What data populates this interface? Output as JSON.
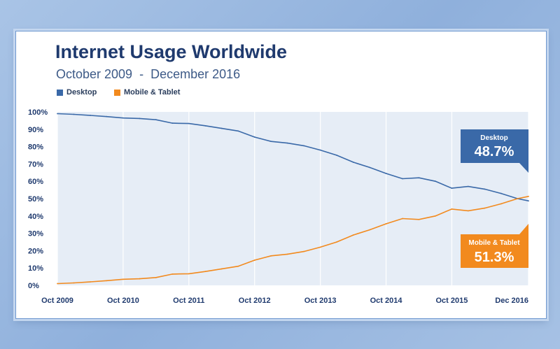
{
  "title": "Internet Usage Worldwide",
  "subtitle": "October 2009  -  December 2016",
  "colors": {
    "desktop": "#3a69a8",
    "mobile": "#f28a1e",
    "plot_bg": "#e6edf6",
    "text": "#1f3a6e"
  },
  "legend": [
    {
      "label": "Desktop",
      "color": "#3a69a8"
    },
    {
      "label": "Mobile & Tablet",
      "color": "#f28a1e"
    }
  ],
  "callouts": {
    "desktop": {
      "label": "Desktop",
      "value": "48.7%"
    },
    "mobile": {
      "label": "Mobile & Tablet",
      "value": "51.3%"
    }
  },
  "chart_data": {
    "type": "line",
    "title": "Internet Usage Worldwide",
    "subtitle": "October 2009  -  December 2016",
    "xlabel": "",
    "ylabel": "",
    "ylim": [
      0,
      100
    ],
    "xlim": [
      "2009-10",
      "2016-12"
    ],
    "grid": "vertical",
    "legend_position": "top-left",
    "x_ticks": [
      "Oct 2009",
      "Oct 2010",
      "Oct 2011",
      "Oct 2012",
      "Oct 2013",
      "Oct 2014",
      "Oct 2015",
      "Dec 2016"
    ],
    "y_ticks": [
      "0%",
      "10%",
      "20%",
      "30%",
      "40%",
      "50%",
      "60%",
      "70%",
      "80%",
      "90%",
      "100%"
    ],
    "x": [
      "2009-10",
      "2010-01",
      "2010-04",
      "2010-07",
      "2010-10",
      "2011-01",
      "2011-04",
      "2011-07",
      "2011-10",
      "2012-01",
      "2012-04",
      "2012-07",
      "2012-10",
      "2013-01",
      "2013-04",
      "2013-07",
      "2013-10",
      "2014-01",
      "2014-04",
      "2014-07",
      "2014-10",
      "2015-01",
      "2015-04",
      "2015-07",
      "2015-10",
      "2016-01",
      "2016-04",
      "2016-07",
      "2016-10",
      "2016-12"
    ],
    "series": [
      {
        "name": "Desktop",
        "values": [
          99.0,
          98.6,
          98.0,
          97.3,
          96.5,
          96.2,
          95.5,
          93.5,
          93.3,
          92.0,
          90.5,
          89.0,
          85.5,
          83.0,
          82.0,
          80.5,
          78.0,
          75.0,
          71.0,
          68.0,
          64.5,
          61.5,
          62.0,
          60.0,
          56.0,
          57.0,
          55.5,
          53.0,
          50.0,
          48.7
        ]
      },
      {
        "name": "Mobile & Tablet",
        "values": [
          1.0,
          1.4,
          2.0,
          2.7,
          3.5,
          3.8,
          4.5,
          6.5,
          6.7,
          8.0,
          9.5,
          11.0,
          14.5,
          17.0,
          18.0,
          19.5,
          22.0,
          25.0,
          29.0,
          32.0,
          35.5,
          38.5,
          38.0,
          40.0,
          44.0,
          43.0,
          44.5,
          47.0,
          50.0,
          51.3
        ]
      }
    ]
  }
}
